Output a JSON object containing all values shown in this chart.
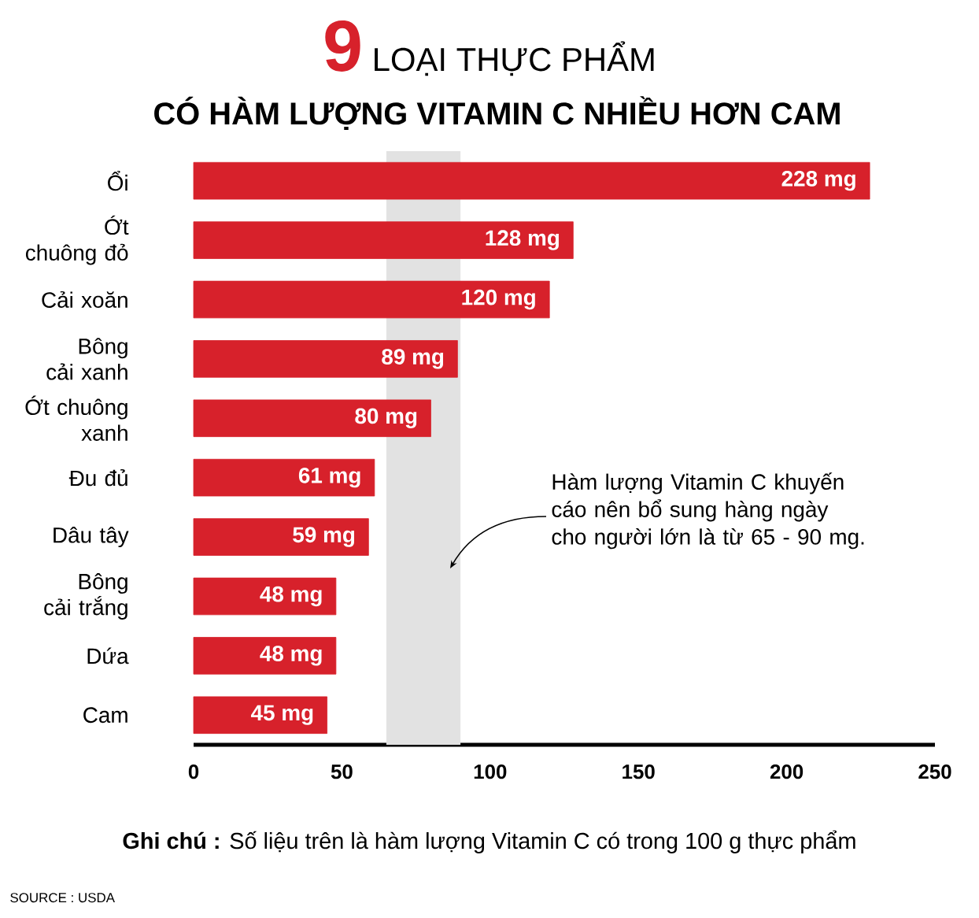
{
  "chart_data": {
    "type": "bar",
    "orientation": "horizontal",
    "title": "**9** LOẠI THỰC PHẨM",
    "subtitle": "CÓ HÀM LƯỢNG VITAMIN C NHIỀU HƠN CAM",
    "categories": [
      "Ổi",
      "Ớt chuông đỏ",
      "Cải xoăn",
      "Bông cải xanh",
      "Ớt chuông xanh",
      "Đu đủ",
      "Dâu tây",
      "Bông cải trắng",
      "Dứa",
      "Cam"
    ],
    "values": [
      228,
      128,
      120,
      89,
      80,
      61,
      59,
      48,
      48,
      45
    ],
    "value_labels": [
      "228 mg",
      "128 mg",
      "120 mg",
      "89 mg",
      "80 mg",
      "61 mg",
      "59 mg",
      "48 mg",
      "48 mg",
      "45 mg"
    ],
    "color": "#d7212b",
    "xlim": [
      0,
      250
    ],
    "xticks": [
      0,
      50,
      100,
      150,
      200,
      250
    ],
    "bands": [
      {
        "axis": "x",
        "from": 65,
        "to": 90,
        "label": "Hàm lượng Vitamin C khuyến cáo nên bổ sung hàng ngày cho người lớn là từ 65 - 90 mg.",
        "color": "#e2e2e2"
      }
    ],
    "annotations": [
      "**Ghi chú :** Số liệu trên là hàm lượng Vitamin C có trong 100 g thực phẩm",
      "SOURCE : USDA"
    ]
  }
}
